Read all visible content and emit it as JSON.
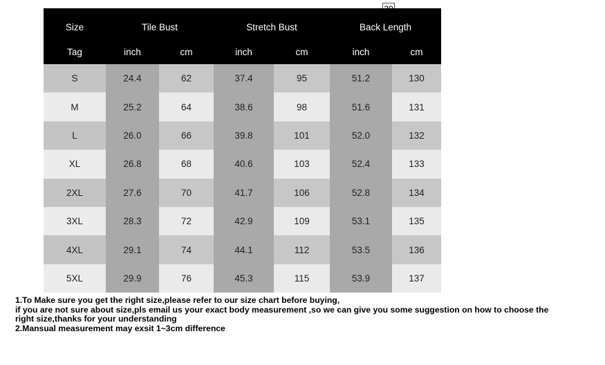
{
  "badge": "30",
  "header": {
    "groups": [
      "Size",
      "Tile Bust",
      "Stretch Bust",
      "Back Length"
    ],
    "units": [
      "Tag",
      "inch",
      "cm",
      "inch",
      "cm",
      "inch",
      "cm"
    ]
  },
  "rows": [
    [
      "S",
      "24.4",
      "62",
      "37.4",
      "95",
      "51.2",
      "130"
    ],
    [
      "M",
      "25.2",
      "64",
      "38.6",
      "98",
      "51.6",
      "131"
    ],
    [
      "L",
      "26.0",
      "66",
      "39.8",
      "101",
      "52.0",
      "132"
    ],
    [
      "XL",
      "26.8",
      "68",
      "40.6",
      "103",
      "52.4",
      "133"
    ],
    [
      "2XL",
      "27.6",
      "70",
      "41.7",
      "106",
      "52.8",
      "134"
    ],
    [
      "3XL",
      "28.3",
      "72",
      "42.9",
      "109",
      "53.1",
      "135"
    ],
    [
      "4XL",
      "29.1",
      "74",
      "44.1",
      "112",
      "53.5",
      "136"
    ],
    [
      "5XL",
      "29.9",
      "76",
      "45.3",
      "115",
      "53.9",
      "137"
    ]
  ],
  "colors": {
    "header_bg": "#000000",
    "header_text": "#ffffff",
    "size_light": "#ececec",
    "size_dark": "#c4c4c4",
    "inch_col": "#a9a9a9",
    "cm_light": "#eaeaea",
    "cm_dark": "#c7c7c7"
  },
  "notes": [
    "1.To Make sure you get the right size,please refer to our size chart before buying,",
    "if you are not sure about size,pls email us your exact body measurement ,so we can give you some suggestion on how to choose the",
    "right size,thanks for your understanding",
    "2.Mansual measurement may exsit 1~3cm difference"
  ]
}
